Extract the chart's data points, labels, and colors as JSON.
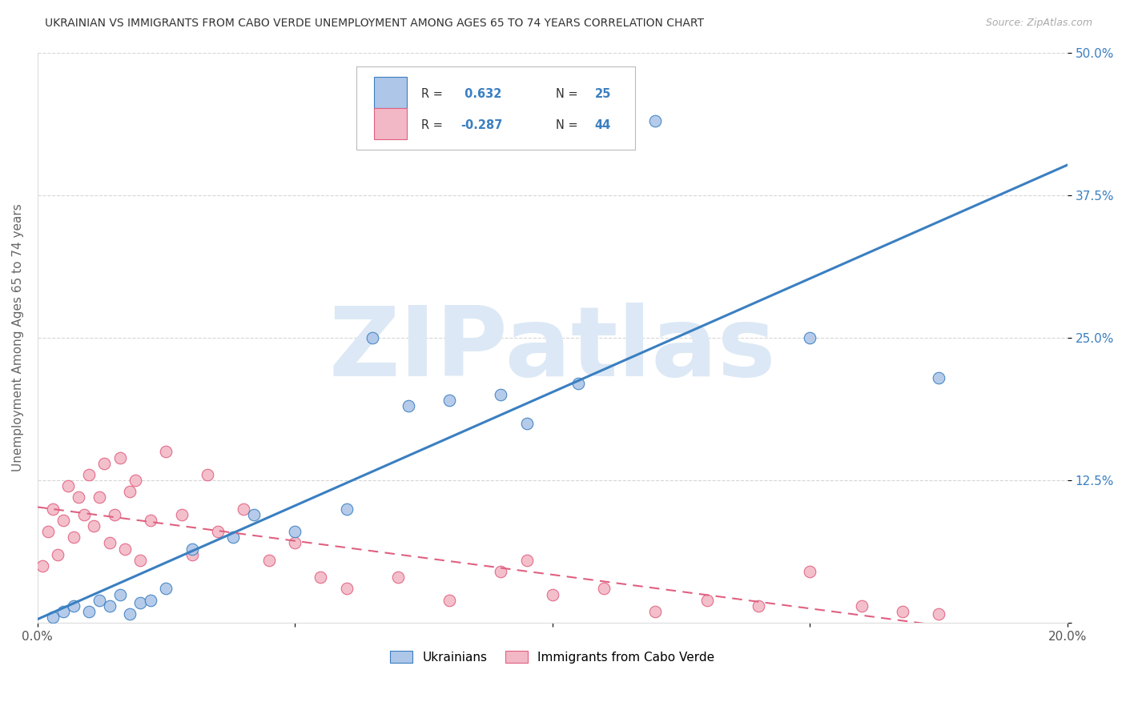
{
  "title": "UKRAINIAN VS IMMIGRANTS FROM CABO VERDE UNEMPLOYMENT AMONG AGES 65 TO 74 YEARS CORRELATION CHART",
  "source": "Source: ZipAtlas.com",
  "ylabel": "Unemployment Among Ages 65 to 74 years",
  "xlim": [
    0.0,
    0.2
  ],
  "ylim": [
    0.0,
    0.5
  ],
  "yticks": [
    0.0,
    0.125,
    0.25,
    0.375,
    0.5
  ],
  "ytick_labels": [
    "",
    "12.5%",
    "25.0%",
    "37.5%",
    "50.0%"
  ],
  "xticks": [
    0.0,
    0.05,
    0.1,
    0.15,
    0.2
  ],
  "xtick_labels": [
    "0.0%",
    "",
    "",
    "",
    "20.0%"
  ],
  "r_ukrainian": 0.632,
  "n_ukrainian": 25,
  "r_caboverde": -0.287,
  "n_caboverde": 44,
  "ukrainian_color": "#aec6e8",
  "caboverde_color": "#f2b8c6",
  "ukrainian_line_color": "#3a7fc1",
  "caboverde_line_color": "#e06080",
  "watermark": "ZIPatlas",
  "watermark_color": "#dce8f5",
  "background_color": "#ffffff",
  "grid_color": "#cccccc",
  "legend_label_ukrainian": "Ukrainians",
  "legend_label_caboverde": "Immigrants from Cabo Verde",
  "ukrainian_x": [
    0.003,
    0.005,
    0.007,
    0.01,
    0.012,
    0.014,
    0.016,
    0.018,
    0.02,
    0.022,
    0.025,
    0.03,
    0.038,
    0.042,
    0.05,
    0.06,
    0.065,
    0.072,
    0.08,
    0.09,
    0.095,
    0.105,
    0.12,
    0.15,
    0.175
  ],
  "ukrainian_y": [
    0.005,
    0.01,
    0.015,
    0.01,
    0.02,
    0.015,
    0.025,
    0.008,
    0.018,
    0.02,
    0.03,
    0.065,
    0.075,
    0.095,
    0.08,
    0.1,
    0.25,
    0.19,
    0.195,
    0.2,
    0.175,
    0.21,
    0.44,
    0.25,
    0.215
  ],
  "caboverde_x": [
    0.001,
    0.002,
    0.003,
    0.004,
    0.005,
    0.006,
    0.007,
    0.008,
    0.009,
    0.01,
    0.011,
    0.012,
    0.013,
    0.014,
    0.015,
    0.016,
    0.017,
    0.018,
    0.019,
    0.02,
    0.022,
    0.025,
    0.028,
    0.03,
    0.033,
    0.035,
    0.04,
    0.045,
    0.05,
    0.055,
    0.06,
    0.07,
    0.08,
    0.09,
    0.095,
    0.1,
    0.11,
    0.12,
    0.13,
    0.14,
    0.15,
    0.16,
    0.168,
    0.175
  ],
  "caboverde_y": [
    0.05,
    0.08,
    0.1,
    0.06,
    0.09,
    0.12,
    0.075,
    0.11,
    0.095,
    0.13,
    0.085,
    0.11,
    0.14,
    0.07,
    0.095,
    0.145,
    0.065,
    0.115,
    0.125,
    0.055,
    0.09,
    0.15,
    0.095,
    0.06,
    0.13,
    0.08,
    0.1,
    0.055,
    0.07,
    0.04,
    0.03,
    0.04,
    0.02,
    0.045,
    0.055,
    0.025,
    0.03,
    0.01,
    0.02,
    0.015,
    0.045,
    0.015,
    0.01,
    0.008
  ]
}
